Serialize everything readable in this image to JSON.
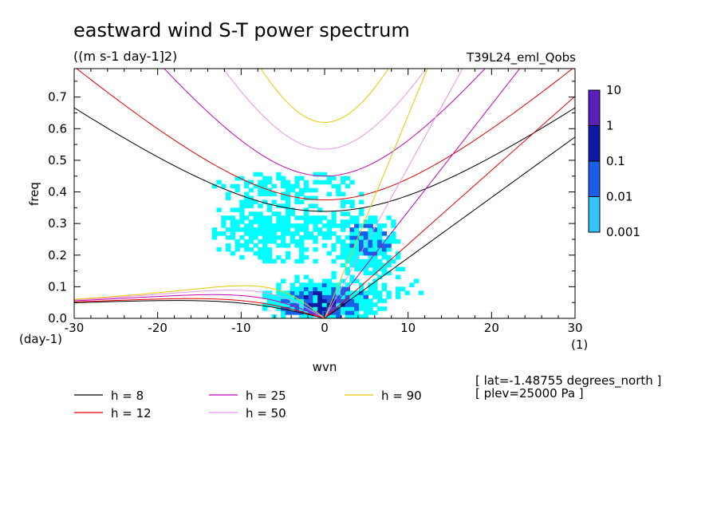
{
  "chart_data": {
    "type": "heatmap",
    "title": "eastward wind S-T power spectrum",
    "subtitle": "((m s-1 day-1]2)",
    "run_label": "T39L24_eml_Qobs",
    "xlabel": "wvn",
    "ylabel": "freq",
    "x_unit": "(1)",
    "y_unit": "(day-1)",
    "xlim": [
      -30,
      30
    ],
    "ylim": [
      0,
      0.79
    ],
    "x_ticks": [
      "-30",
      "-20",
      "-10",
      "0",
      "10",
      "20",
      "30"
    ],
    "x_tick_values": [
      -30,
      -20,
      -10,
      0,
      10,
      20,
      30
    ],
    "y_ticks": [
      "0.0",
      "0.1",
      "0.2",
      "0.3",
      "0.4",
      "0.5",
      "0.6",
      "0.7"
    ],
    "y_tick_values": [
      0,
      0.1,
      0.2,
      0.3,
      0.4,
      0.5,
      0.6,
      0.7
    ],
    "colorbar": {
      "labels": [
        "10",
        "1",
        "0.1",
        "0.01",
        "0.001"
      ],
      "colors": [
        "#5a1fb8",
        "#0d1aa6",
        "#1a5fe8",
        "#33c3ff",
        "#00ffff"
      ]
    },
    "dispersion_curves": [
      {
        "name": "h =  8",
        "h": 8,
        "color": "#000000"
      },
      {
        "name": "h = 12",
        "h": 12,
        "color": "#e60000"
      },
      {
        "name": "h = 25",
        "h": 25,
        "color": "#c800b4"
      },
      {
        "name": "h = 50",
        "h": 50,
        "color": "#e696e6"
      },
      {
        "name": "h = 90",
        "h": 90,
        "color": "#e6c800"
      }
    ],
    "annotations": [
      "[ lat=-1.48755 degrees_north ]",
      "[ plev=25000 Pa ]"
    ]
  }
}
